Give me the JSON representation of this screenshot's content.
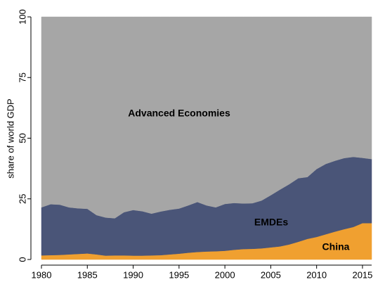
{
  "chart_data": {
    "type": "stacked_area",
    "y_label": "share of world GDP",
    "x": [
      1980,
      1981,
      1982,
      1983,
      1984,
      1985,
      1986,
      1987,
      1988,
      1989,
      1990,
      1991,
      1992,
      1993,
      1994,
      1995,
      1996,
      1997,
      1998,
      1999,
      2000,
      2001,
      2002,
      2003,
      2004,
      2005,
      2006,
      2007,
      2008,
      2009,
      2010,
      2011,
      2012,
      2013,
      2014,
      2015,
      2016
    ],
    "series": [
      {
        "name": "China",
        "color": "#f0a030",
        "values": [
          1.7,
          1.8,
          1.9,
          2.1,
          2.3,
          2.5,
          2.1,
          1.6,
          1.7,
          1.7,
          1.6,
          1.6,
          1.7,
          1.8,
          2.1,
          2.4,
          2.8,
          3.1,
          3.3,
          3.4,
          3.6,
          4.0,
          4.3,
          4.4,
          4.6,
          5.0,
          5.4,
          6.2,
          7.3,
          8.5,
          9.3,
          10.4,
          11.5,
          12.5,
          13.4,
          15.0,
          15.0
        ]
      },
      {
        "name": "EMDEs",
        "color": "#4a5578",
        "values": [
          19.8,
          21.0,
          20.7,
          19.4,
          18.8,
          18.4,
          16.2,
          15.7,
          15.3,
          17.8,
          18.8,
          18.3,
          17.2,
          18.0,
          18.4,
          18.6,
          19.5,
          20.6,
          19.0,
          18.1,
          19.3,
          19.3,
          18.8,
          18.8,
          19.7,
          21.5,
          23.4,
          24.8,
          26.2,
          25.5,
          28.0,
          29.0,
          29.2,
          29.3,
          28.9,
          26.9,
          26.4
        ]
      },
      {
        "name": "Advanced Economies",
        "color": "#a6a6a6",
        "values": [
          78.5,
          77.2,
          77.4,
          78.5,
          78.9,
          79.1,
          81.7,
          82.7,
          83.0,
          80.5,
          79.6,
          80.1,
          81.1,
          80.2,
          79.5,
          79.0,
          77.7,
          76.3,
          77.7,
          78.5,
          77.1,
          76.7,
          76.9,
          76.8,
          75.7,
          73.5,
          71.2,
          69.0,
          66.5,
          66.0,
          62.7,
          60.6,
          59.3,
          58.2,
          57.7,
          58.1,
          58.6
        ]
      }
    ],
    "xlim": [
      1980,
      2016
    ],
    "xticks": [
      1980,
      1985,
      1990,
      1995,
      2000,
      2005,
      2010,
      2015
    ],
    "ylim": [
      0,
      100
    ],
    "yticks": [
      0,
      25,
      50,
      75,
      100
    ]
  }
}
